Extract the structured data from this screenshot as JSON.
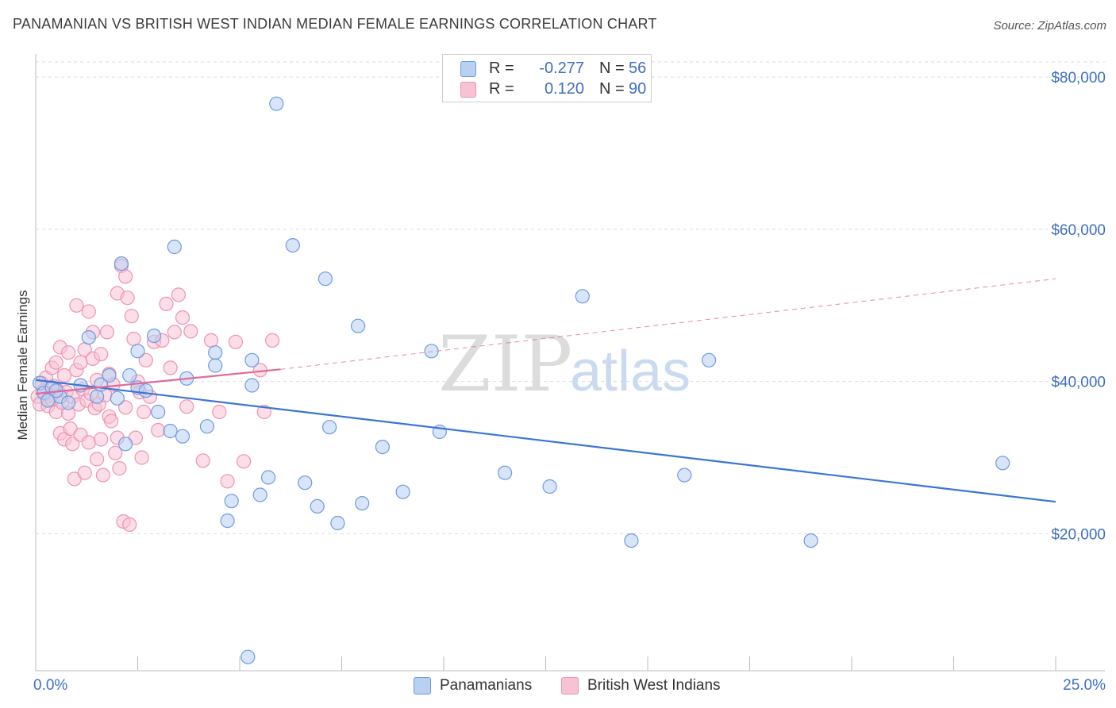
{
  "title": "PANAMANIAN VS BRITISH WEST INDIAN MEDIAN FEMALE EARNINGS CORRELATION CHART",
  "source": "Source: ZipAtlas.com",
  "watermark": {
    "zip": "ZIP",
    "atlas": "atlas"
  },
  "colors": {
    "blue": "#3a76d2",
    "blue_fill": "#b8d0f2",
    "blue_stroke": "#6d9be0",
    "pink": "#e06a9a",
    "pink_fill": "#f7c3d4",
    "pink_stroke": "#ee93b3",
    "grid": "#dddddd",
    "label": "#3f6fbf"
  },
  "legend": {
    "rows": [
      {
        "r_label": "R =",
        "r_value": "-0.277",
        "n_label": "N =",
        "n_value": "56"
      },
      {
        "r_label": "R =",
        "r_value": "0.120",
        "n_label": "N =",
        "n_value": "90"
      }
    ]
  },
  "chart_data": {
    "type": "scatter",
    "title": "PANAMANIAN VS BRITISH WEST INDIAN MEDIAN FEMALE EARNINGS CORRELATION CHART",
    "xlabel": "",
    "ylabel": "Median Female Earnings",
    "xlim": [
      0,
      25
    ],
    "ylim": [
      2000,
      82000
    ],
    "x_tick_labels": [
      "0.0%",
      "25.0%"
    ],
    "y_ticks": [
      20000,
      40000,
      60000,
      80000
    ],
    "y_tick_labels": [
      "$20,000",
      "$40,000",
      "$60,000",
      "$80,000"
    ],
    "grid": true,
    "legend_position": "top-center",
    "series": [
      {
        "name": "Panamanians",
        "color": "#3a76d2",
        "trend": {
          "x": [
            0.0,
            25.0
          ],
          "y": [
            40200,
            24200
          ],
          "style": "solid"
        },
        "points": [
          [
            0.1,
            39800
          ],
          [
            0.2,
            38500
          ],
          [
            0.3,
            37500
          ],
          [
            0.4,
            39200
          ],
          [
            0.6,
            38000
          ],
          [
            0.8,
            37200
          ],
          [
            1.1,
            39500
          ],
          [
            1.3,
            45800
          ],
          [
            1.5,
            38000
          ],
          [
            1.6,
            39600
          ],
          [
            1.8,
            40800
          ],
          [
            2.0,
            37800
          ],
          [
            2.1,
            55500
          ],
          [
            2.2,
            31800
          ],
          [
            2.3,
            40800
          ],
          [
            2.5,
            39200
          ],
          [
            2.5,
            44000
          ],
          [
            2.7,
            38800
          ],
          [
            2.9,
            46000
          ],
          [
            3.0,
            36000
          ],
          [
            3.3,
            33500
          ],
          [
            3.4,
            57700
          ],
          [
            3.6,
            32800
          ],
          [
            3.7,
            40400
          ],
          [
            4.2,
            34100
          ],
          [
            4.4,
            42100
          ],
          [
            4.4,
            43800
          ],
          [
            4.8,
            24300
          ],
          [
            4.7,
            21700
          ],
          [
            5.3,
            39500
          ],
          [
            5.3,
            42800
          ],
          [
            5.5,
            25100
          ],
          [
            5.7,
            27400
          ],
          [
            5.9,
            76500
          ],
          [
            5.2,
            3800
          ],
          [
            6.3,
            57900
          ],
          [
            6.6,
            26700
          ],
          [
            6.9,
            23600
          ],
          [
            7.1,
            53500
          ],
          [
            7.2,
            34000
          ],
          [
            7.4,
            21400
          ],
          [
            7.9,
            47300
          ],
          [
            8.0,
            24000
          ],
          [
            8.5,
            31400
          ],
          [
            9.0,
            25500
          ],
          [
            9.7,
            44000
          ],
          [
            9.9,
            33400
          ],
          [
            11.5,
            28000
          ],
          [
            12.6,
            26200
          ],
          [
            13.4,
            51200
          ],
          [
            14.6,
            19100
          ],
          [
            15.9,
            27700
          ],
          [
            16.5,
            42800
          ],
          [
            19.0,
            19100
          ],
          [
            23.7,
            29300
          ],
          [
            0.5,
            38800
          ]
        ]
      },
      {
        "name": "British West Indians",
        "color": "#e06a9a",
        "trend": {
          "x": [
            0.0,
            6.0
          ],
          "y": [
            38400,
            41600
          ],
          "style": "solid",
          "extended_x": [
            6.0,
            25.0
          ],
          "extended_y": [
            41600,
            53500
          ],
          "extended_style": "dashed"
        },
        "points": [
          [
            0.05,
            38000
          ],
          [
            0.1,
            37000
          ],
          [
            0.15,
            39800
          ],
          [
            0.2,
            38800
          ],
          [
            0.25,
            40500
          ],
          [
            0.3,
            36800
          ],
          [
            0.35,
            38200
          ],
          [
            0.4,
            41800
          ],
          [
            0.4,
            37600
          ],
          [
            0.45,
            39400
          ],
          [
            0.5,
            36000
          ],
          [
            0.5,
            42500
          ],
          [
            0.55,
            38800
          ],
          [
            0.6,
            44500
          ],
          [
            0.6,
            33200
          ],
          [
            0.65,
            37200
          ],
          [
            0.7,
            40800
          ],
          [
            0.7,
            32400
          ],
          [
            0.75,
            38600
          ],
          [
            0.8,
            35800
          ],
          [
            0.8,
            43800
          ],
          [
            0.85,
            33800
          ],
          [
            0.9,
            31800
          ],
          [
            0.9,
            38000
          ],
          [
            0.95,
            27200
          ],
          [
            1.0,
            41500
          ],
          [
            1.0,
            50000
          ],
          [
            1.05,
            37000
          ],
          [
            1.1,
            33000
          ],
          [
            1.1,
            42500
          ],
          [
            1.15,
            39000
          ],
          [
            1.2,
            44200
          ],
          [
            1.2,
            28000
          ],
          [
            1.25,
            37500
          ],
          [
            1.3,
            49200
          ],
          [
            1.3,
            32000
          ],
          [
            1.35,
            38400
          ],
          [
            1.4,
            46500
          ],
          [
            1.4,
            43000
          ],
          [
            1.45,
            36500
          ],
          [
            1.5,
            40200
          ],
          [
            1.5,
            29800
          ],
          [
            1.55,
            37000
          ],
          [
            1.6,
            43600
          ],
          [
            1.6,
            32400
          ],
          [
            1.65,
            27700
          ],
          [
            1.7,
            38200
          ],
          [
            1.75,
            46500
          ],
          [
            1.8,
            35400
          ],
          [
            1.8,
            41000
          ],
          [
            1.85,
            34800
          ],
          [
            1.9,
            39600
          ],
          [
            1.95,
            30600
          ],
          [
            2.0,
            51600
          ],
          [
            2.0,
            32600
          ],
          [
            2.05,
            28600
          ],
          [
            2.1,
            55200
          ],
          [
            2.15,
            21600
          ],
          [
            2.2,
            53800
          ],
          [
            2.2,
            36600
          ],
          [
            2.25,
            51000
          ],
          [
            2.3,
            21200
          ],
          [
            2.35,
            48600
          ],
          [
            2.4,
            45600
          ],
          [
            2.45,
            32600
          ],
          [
            2.5,
            40000
          ],
          [
            2.55,
            38600
          ],
          [
            2.6,
            30000
          ],
          [
            2.65,
            36000
          ],
          [
            2.7,
            42800
          ],
          [
            2.8,
            38000
          ],
          [
            2.9,
            45200
          ],
          [
            3.0,
            33600
          ],
          [
            3.1,
            45400
          ],
          [
            3.2,
            50200
          ],
          [
            3.3,
            41800
          ],
          [
            3.4,
            46500
          ],
          [
            3.5,
            51400
          ],
          [
            3.6,
            48400
          ],
          [
            3.7,
            36700
          ],
          [
            3.8,
            46600
          ],
          [
            4.1,
            29600
          ],
          [
            4.3,
            45400
          ],
          [
            4.5,
            36000
          ],
          [
            4.7,
            26900
          ],
          [
            4.9,
            45200
          ],
          [
            5.1,
            29500
          ],
          [
            5.5,
            41500
          ],
          [
            5.6,
            36000
          ],
          [
            5.8,
            45400
          ]
        ]
      }
    ]
  }
}
